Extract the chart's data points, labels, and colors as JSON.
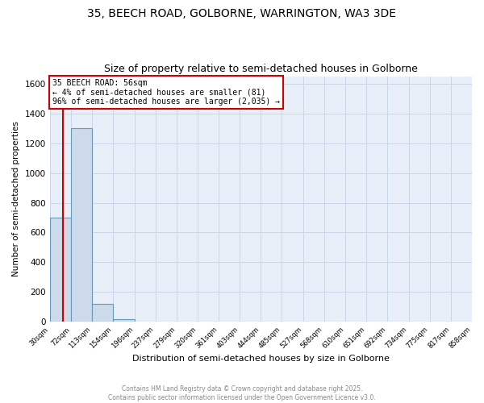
{
  "title": "35, BEECH ROAD, GOLBORNE, WARRINGTON, WA3 3DE",
  "subtitle": "Size of property relative to semi-detached houses in Golborne",
  "xlabel": "Distribution of semi-detached houses by size in Golborne",
  "ylabel": "Number of semi-detached properties",
  "bin_edges": [
    30,
    72,
    113,
    154,
    196,
    237,
    279,
    320,
    361,
    403,
    444,
    485,
    527,
    568,
    610,
    651,
    692,
    734,
    775,
    817,
    858
  ],
  "bar_heights": [
    700,
    1300,
    120,
    15,
    0,
    0,
    0,
    0,
    0,
    0,
    0,
    0,
    0,
    0,
    0,
    0,
    0,
    0,
    0,
    0
  ],
  "bar_color": "#ccdaea",
  "bar_edge_color": "#6699bb",
  "property_size": 56,
  "red_line_color": "#cc0000",
  "annotation_text": "35 BEECH ROAD: 56sqm\n← 4% of semi-detached houses are smaller (81)\n96% of semi-detached houses are larger (2,035) →",
  "annotation_box_edgecolor": "#cc0000",
  "ylim": [
    0,
    1650
  ],
  "yticks": [
    0,
    200,
    400,
    600,
    800,
    1000,
    1200,
    1400,
    1600
  ],
  "grid_color": "#c8d8e8",
  "background_color": "#e8eff8",
  "footer_text": "Contains HM Land Registry data © Crown copyright and database right 2025.\nContains public sector information licensed under the Open Government Licence v3.0.",
  "title_fontsize": 10,
  "subtitle_fontsize": 9
}
